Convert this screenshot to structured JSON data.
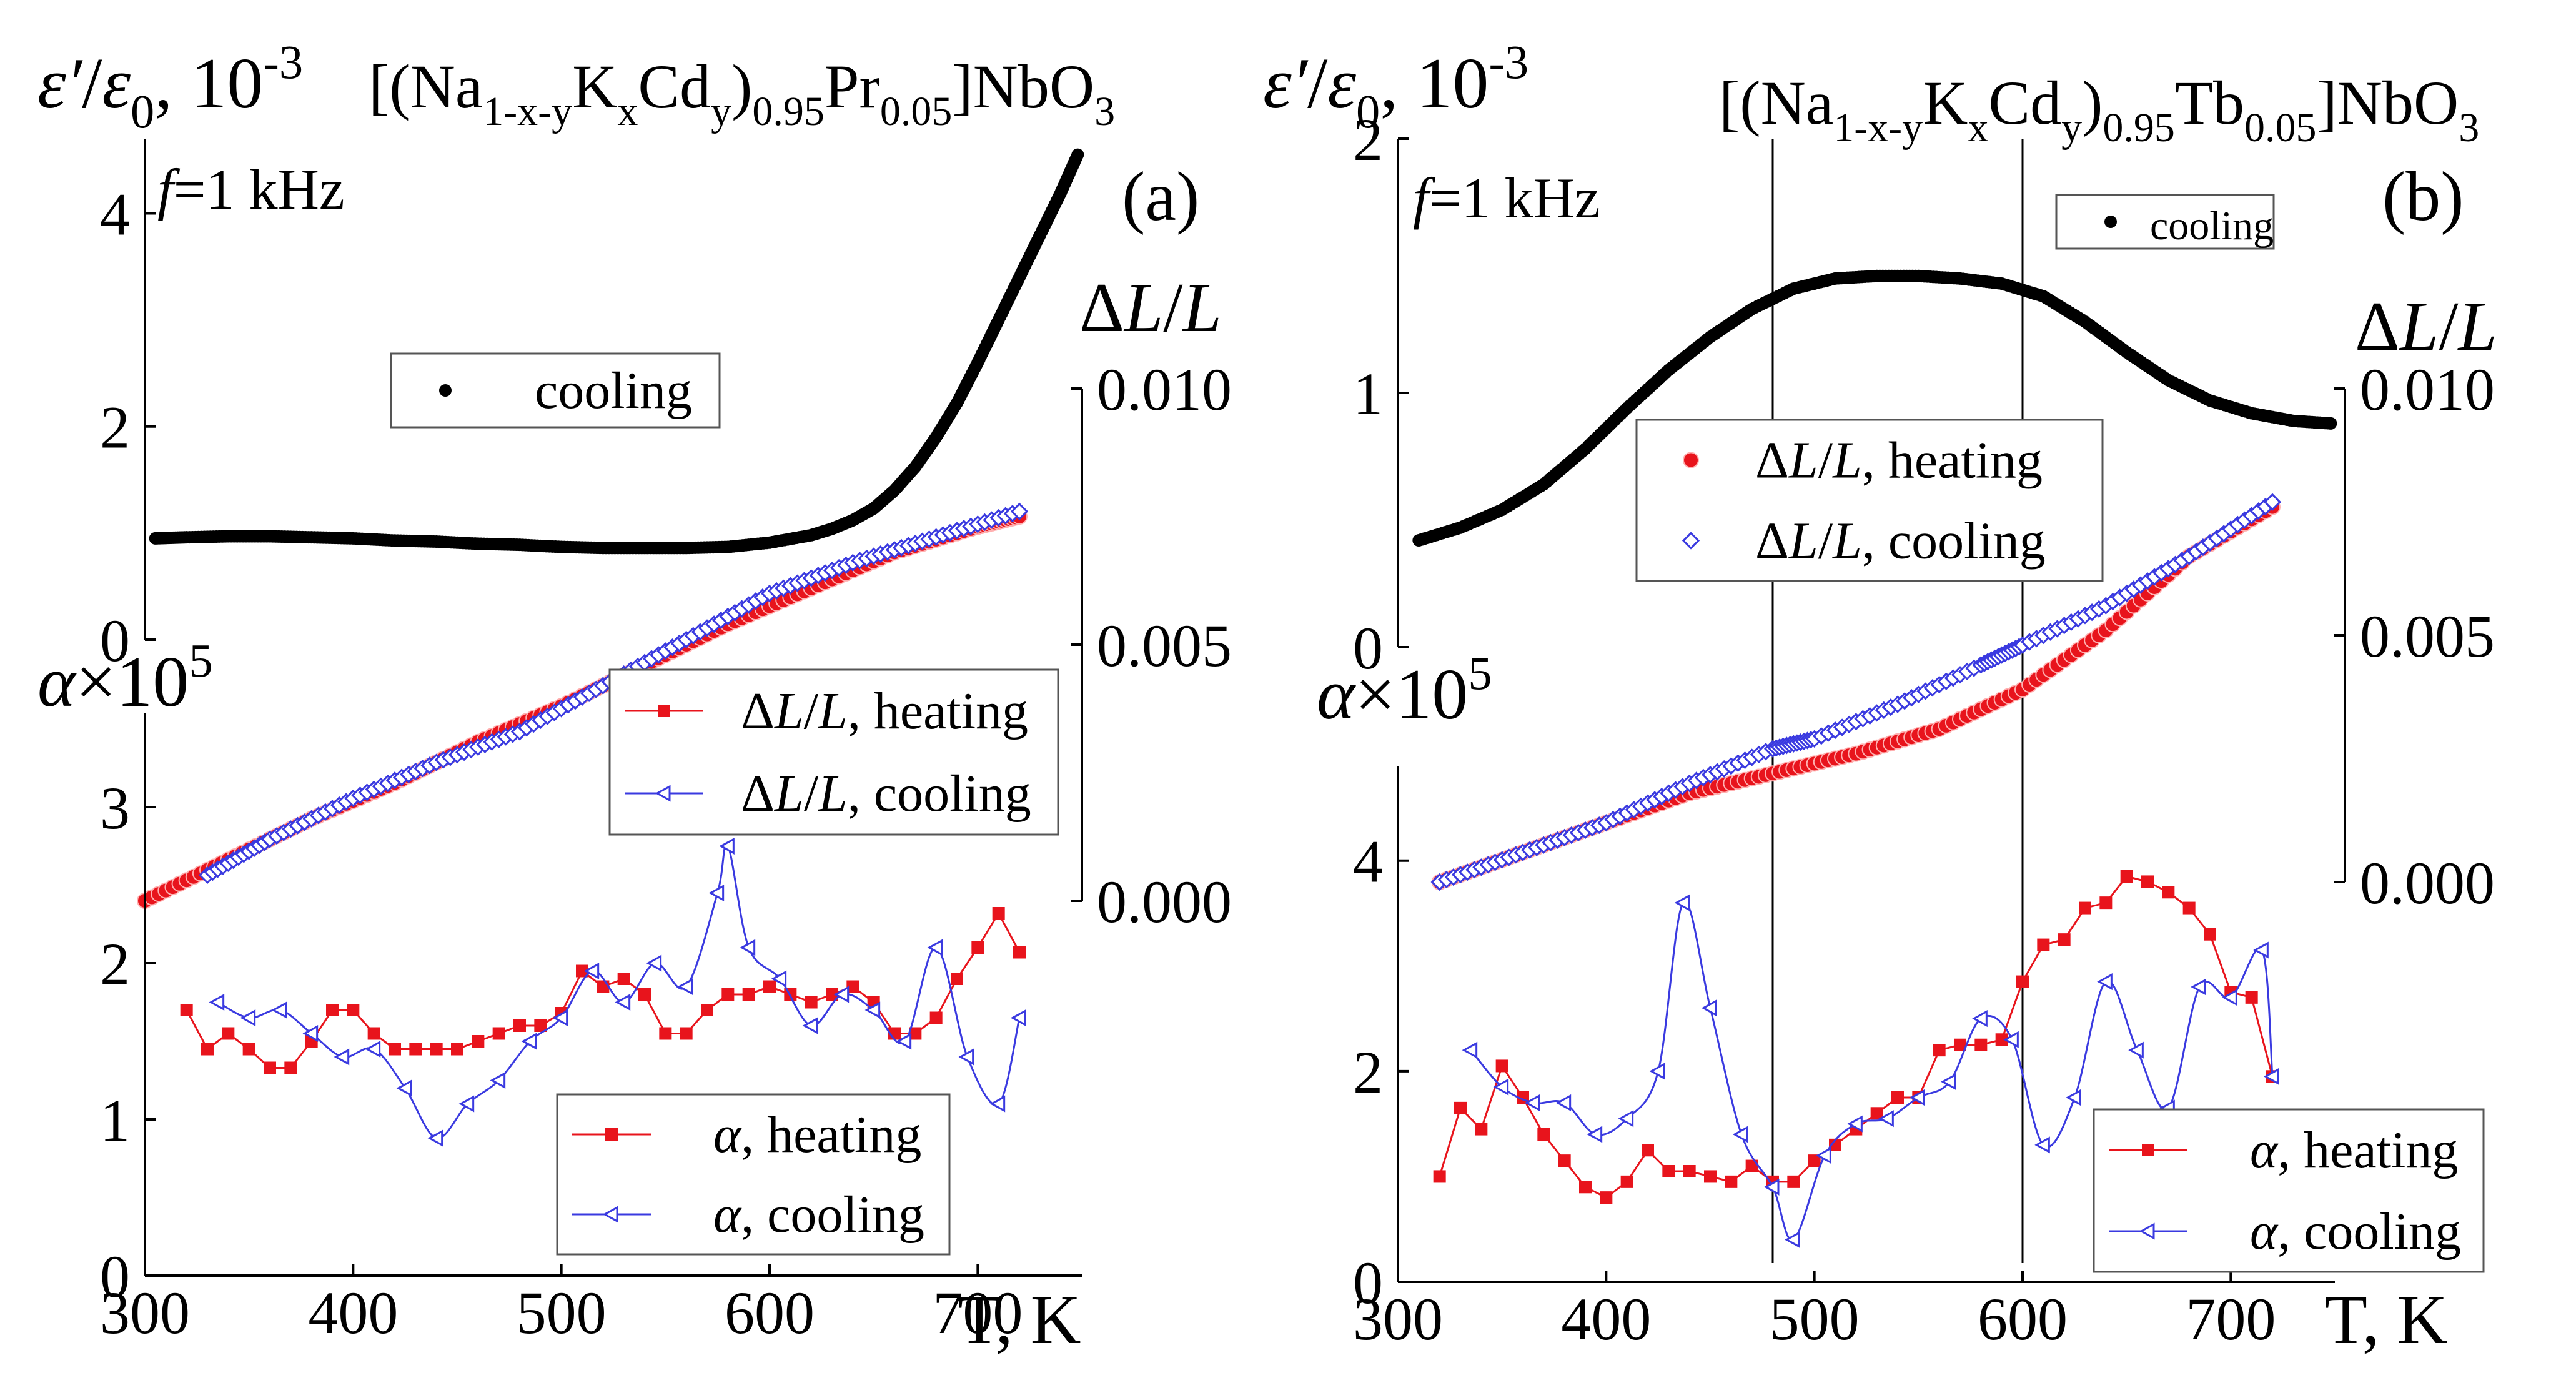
{
  "colors": {
    "red": "#e8141c",
    "blue": "#3a3ae0",
    "black": "#000000"
  },
  "chart_data": [
    {
      "panel_label": "(a)",
      "type": "scatter",
      "title": "[(Na1-x-yKxCdy)0.95Pr0.05]NbO3",
      "freq_label": "f=1 kHz",
      "xlabel": "T, K",
      "xlim": [
        300,
        750
      ],
      "xticks": [
        "300",
        "400",
        "500",
        "600",
        "700"
      ],
      "eps": {
        "ylabel": "ε′/ε0, 10-3",
        "ylim": [
          0,
          4.7
        ],
        "yticks": [
          "0",
          "2",
          "4"
        ],
        "legend": [
          "cooling"
        ],
        "series": [
          {
            "name": "cooling",
            "color": "#000000",
            "x": [
              305,
              320,
              340,
              360,
              380,
              400,
              420,
              440,
              460,
              480,
              500,
              520,
              540,
              560,
              580,
              600,
              620,
              630,
              640,
              650,
              660,
              670,
              680,
              690,
              700,
              710,
              720,
              730,
              740,
              748
            ],
            "y": [
              0.95,
              0.96,
              0.97,
              0.97,
              0.96,
              0.95,
              0.93,
              0.92,
              0.9,
              0.89,
              0.87,
              0.86,
              0.86,
              0.86,
              0.87,
              0.91,
              0.98,
              1.04,
              1.12,
              1.23,
              1.4,
              1.62,
              1.9,
              2.22,
              2.6,
              3.0,
              3.4,
              3.8,
              4.2,
              4.55
            ]
          }
        ]
      },
      "dl": {
        "ylabel": "ΔL/L",
        "ylim": [
          0,
          0.01
        ],
        "yticks": [
          "0.000",
          "0.005",
          "0.010"
        ],
        "legend": [
          "ΔL/L, heating",
          "ΔL/L, cooling"
        ],
        "series": [
          {
            "name": "ΔL/L, heating",
            "color": "#e8141c",
            "x": [
              300,
              340,
              380,
              420,
              460,
              500,
              540,
              580,
              620,
              660,
              700,
              720
            ],
            "y": [
              0.0,
              0.0008,
              0.0016,
              0.0023,
              0.0031,
              0.0038,
              0.0046,
              0.0054,
              0.0061,
              0.0068,
              0.0073,
              0.0075
            ]
          },
          {
            "name": "ΔL/L, cooling",
            "color": "#3a3ae0",
            "x": [
              330,
              360,
              400,
              440,
              480,
              520,
              560,
              600,
              640,
              680,
              720
            ],
            "y": [
              0.0005,
              0.0012,
              0.002,
              0.0027,
              0.0033,
              0.0042,
              0.0051,
              0.006,
              0.0066,
              0.0071,
              0.0076
            ]
          }
        ]
      },
      "alpha": {
        "ylabel": "α×10^5",
        "ylim": [
          0,
          3.6
        ],
        "yticks": [
          "0",
          "1",
          "2",
          "3"
        ],
        "legend": [
          "α, heating",
          "α, cooling"
        ],
        "series": [
          {
            "name": "α, heating",
            "color": "#e8141c",
            "x": [
              320,
              330,
              340,
              350,
              360,
              370,
              380,
              390,
              400,
              410,
              420,
              430,
              440,
              450,
              460,
              470,
              480,
              490,
              500,
              510,
              520,
              530,
              540,
              550,
              560,
              570,
              580,
              590,
              600,
              610,
              620,
              630,
              640,
              650,
              660,
              670,
              680,
              690,
              700,
              710,
              720
            ],
            "y": [
              1.7,
              1.45,
              1.55,
              1.45,
              1.33,
              1.33,
              1.5,
              1.7,
              1.7,
              1.55,
              1.45,
              1.45,
              1.45,
              1.45,
              1.5,
              1.55,
              1.6,
              1.6,
              1.68,
              1.95,
              1.85,
              1.9,
              1.8,
              1.55,
              1.55,
              1.7,
              1.8,
              1.8,
              1.85,
              1.8,
              1.75,
              1.8,
              1.85,
              1.75,
              1.55,
              1.55,
              1.65,
              1.9,
              2.1,
              2.32,
              2.07
            ]
          },
          {
            "name": "α, cooling",
            "color": "#3a3ae0",
            "x": [
              335,
              350,
              365,
              380,
              395,
              410,
              425,
              440,
              455,
              470,
              485,
              500,
              515,
              530,
              545,
              560,
              575,
              580,
              590,
              605,
              620,
              635,
              650,
              665,
              680,
              695,
              710,
              720
            ],
            "y": [
              1.75,
              1.65,
              1.7,
              1.55,
              1.4,
              1.45,
              1.2,
              0.88,
              1.1,
              1.25,
              1.5,
              1.65,
              1.95,
              1.75,
              2.0,
              1.85,
              2.45,
              2.75,
              2.1,
              1.9,
              1.6,
              1.8,
              1.7,
              1.5,
              2.1,
              1.4,
              1.1,
              1.65
            ]
          }
        ]
      }
    },
    {
      "panel_label": "(b)",
      "type": "scatter",
      "title": "[(Na1-x-yKxCdy)0.95Tb0.05]NbO3",
      "freq_label": "f=1 kHz",
      "xlabel": "T, K",
      "xlim": [
        300,
        750
      ],
      "xticks": [
        "300",
        "400",
        "500",
        "600",
        "700"
      ],
      "vlines": [
        480,
        600
      ],
      "eps": {
        "ylabel": "ε′/ε0, 10-3",
        "ylim": [
          0,
          2.0
        ],
        "yticks": [
          "0",
          "1",
          "2"
        ],
        "legend": [
          "cooling"
        ],
        "series": [
          {
            "name": "cooling",
            "color": "#000000",
            "x": [
              310,
              330,
              350,
              370,
              390,
              410,
              430,
              450,
              470,
              490,
              510,
              530,
              550,
              570,
              590,
              610,
              630,
              650,
              670,
              690,
              710,
              730,
              748
            ],
            "y": [
              0.42,
              0.47,
              0.54,
              0.64,
              0.78,
              0.94,
              1.09,
              1.22,
              1.33,
              1.41,
              1.45,
              1.46,
              1.46,
              1.45,
              1.43,
              1.38,
              1.28,
              1.16,
              1.05,
              0.97,
              0.92,
              0.89,
              0.88
            ]
          }
        ]
      },
      "dl": {
        "ylabel": "ΔL/L",
        "ylim": [
          0,
          0.01
        ],
        "yticks": [
          "0.000",
          "0.005",
          "0.010"
        ],
        "legend": [
          "ΔL/L, heating",
          "ΔL/L, cooling"
        ],
        "series": [
          {
            "name": "ΔL/L, heating",
            "color": "#e8141c",
            "x": [
              320,
              360,
              400,
              440,
              480,
              520,
              560,
              600,
              640,
              680,
              720
            ],
            "y": [
              0.0,
              0.0006,
              0.0012,
              0.0018,
              0.0022,
              0.0026,
              0.0031,
              0.0039,
              0.0051,
              0.0066,
              0.0076
            ]
          },
          {
            "name": "ΔL/L, cooling",
            "color": "#3a3ae0",
            "x": [
              320,
              360,
              400,
              440,
              480,
              500,
              540,
              580,
              600,
              640,
              680,
              720
            ],
            "y": [
              0.0,
              0.0006,
              0.0012,
              0.002,
              0.0027,
              0.0029,
              0.0036,
              0.0044,
              0.0048,
              0.0056,
              0.0066,
              0.0077
            ]
          }
        ]
      },
      "alpha": {
        "ylabel": "α×10^5",
        "ylim": [
          0,
          4.9
        ],
        "yticks": [
          "0",
          "2",
          "4"
        ],
        "legend": [
          "α, heating",
          "α, cooling"
        ],
        "series": [
          {
            "name": "α, heating",
            "color": "#e8141c",
            "x": [
              320,
              330,
              340,
              350,
              360,
              370,
              380,
              390,
              400,
              410,
              420,
              430,
              440,
              450,
              460,
              470,
              480,
              490,
              500,
              510,
              520,
              530,
              540,
              550,
              560,
              570,
              580,
              590,
              600,
              610,
              620,
              630,
              640,
              650,
              660,
              670,
              680,
              690,
              700,
              710,
              720
            ],
            "y": [
              1.0,
              1.65,
              1.45,
              2.05,
              1.75,
              1.4,
              1.15,
              0.9,
              0.8,
              0.95,
              1.25,
              1.05,
              1.05,
              1.0,
              0.95,
              1.1,
              0.95,
              0.95,
              1.15,
              1.3,
              1.45,
              1.6,
              1.75,
              1.75,
              2.2,
              2.25,
              2.25,
              2.3,
              2.85,
              3.2,
              3.25,
              3.55,
              3.6,
              3.85,
              3.8,
              3.7,
              3.55,
              3.3,
              2.75,
              2.7,
              1.95
            ]
          },
          {
            "name": "α, cooling",
            "color": "#3a3ae0",
            "x": [
              335,
              350,
              365,
              380,
              395,
              410,
              425,
              437,
              450,
              465,
              480,
              490,
              505,
              520,
              535,
              550,
              565,
              580,
              595,
              610,
              625,
              640,
              655,
              670,
              685,
              700,
              715,
              720
            ],
            "y": [
              2.2,
              1.85,
              1.7,
              1.7,
              1.4,
              1.55,
              2.0,
              3.6,
              2.6,
              1.4,
              0.9,
              0.4,
              1.2,
              1.5,
              1.55,
              1.75,
              1.9,
              2.5,
              2.3,
              1.3,
              1.75,
              2.85,
              2.2,
              1.65,
              2.8,
              2.7,
              3.15,
              1.95
            ]
          }
        ]
      }
    }
  ]
}
